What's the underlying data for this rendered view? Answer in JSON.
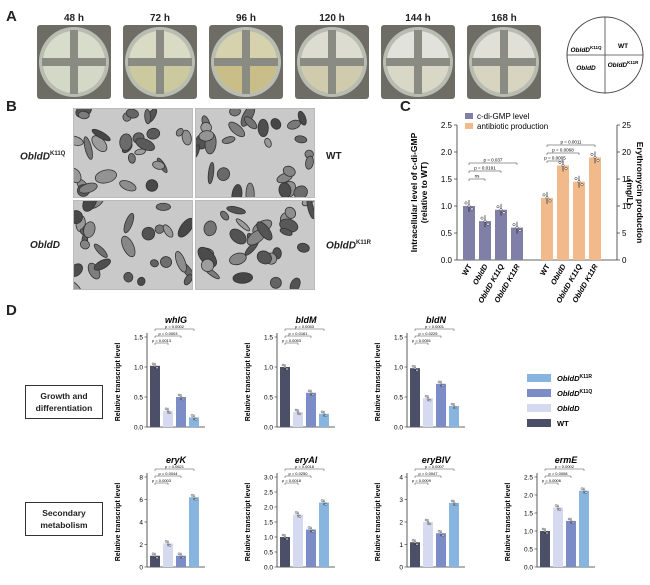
{
  "panels": {
    "A": "A",
    "B": "B",
    "C": "C",
    "D": "D"
  },
  "panelA": {
    "times": [
      "48 h",
      "72 h",
      "96 h",
      "120 h",
      "144 h",
      "168 h"
    ],
    "quadrant_labels": {
      "top_left": "ObldD",
      "top_left_sup": "K11Q",
      "top_right": "WT",
      "bottom_left": "ObldD",
      "bottom_right": "ObldD",
      "bottom_right_sup": "K11R"
    }
  },
  "panelB": {
    "labels": [
      {
        "base": "ObldD",
        "sup": "K11Q"
      },
      {
        "base": "WT",
        "sup": ""
      },
      {
        "base": "ObldD",
        "sup": ""
      },
      {
        "base": "ObldD",
        "sup": "K11R"
      }
    ]
  },
  "chart_data": [
    {
      "type": "bar",
      "panel": "C",
      "categories": [
        "WT",
        "ObldD",
        "ObldD K11Q",
        "ObldD K11R"
      ],
      "ylabel": "Intracellular level of c-di-GMP (relative to WT)",
      "y2label": "Erythromycin production (mg/L)",
      "ylim": [
        0,
        2.5
      ],
      "y2lim": [
        0,
        25
      ],
      "yticks": [
        "0.0",
        "0.5",
        "1.0",
        "1.5",
        "2.0",
        "2.5"
      ],
      "y2ticks": [
        "0",
        "5",
        "10",
        "15",
        "20",
        "25"
      ],
      "legend": [
        "c-di-GMP level",
        "antibiotic production"
      ],
      "series": [
        {
          "name": "c-di-GMP level",
          "values": [
            1.0,
            0.72,
            0.93,
            0.6
          ],
          "color": "#7f7fa8"
        },
        {
          "name": "antibiotic production",
          "values": [
            11.5,
            17.5,
            14.5,
            19.0
          ],
          "color": "#f2b98a"
        }
      ],
      "pvalues_left": [
        "p = 0.037",
        "p = 0.0191",
        "ns"
      ],
      "pvalues_right": [
        "p = 0.0011",
        "p = 0.0068",
        "p = 0.0005"
      ]
    },
    {
      "type": "bar",
      "panel": "D",
      "title": "whIG",
      "ylabel": "Relative transcript level",
      "ylim": [
        0,
        1.5
      ],
      "yticks": [
        "0.0",
        "0.5",
        "1.0",
        "1.5"
      ],
      "values": [
        1.02,
        0.27,
        0.5,
        0.16
      ],
      "pvalues": [
        "p = 0.0002",
        "p = 0.0003",
        "p = 0.0013"
      ]
    },
    {
      "type": "bar",
      "panel": "D",
      "title": "bldM",
      "ylabel": "Relative transcript level",
      "ylim": [
        0,
        1.5
      ],
      "yticks": [
        "0.0",
        "0.5",
        "1.0",
        "1.5"
      ],
      "values": [
        1.0,
        0.25,
        0.57,
        0.22
      ],
      "pvalues": [
        "p = 0.0053",
        "p = 0.0161",
        "p = 0.0053"
      ]
    },
    {
      "type": "bar",
      "panel": "D",
      "title": "bldN",
      "ylabel": "Relative transcript level",
      "ylim": [
        0,
        1.5
      ],
      "yticks": [
        "0.0",
        "0.5",
        "1.0",
        "1.5"
      ],
      "values": [
        0.98,
        0.48,
        0.72,
        0.35
      ],
      "pvalues": [
        "p < 0.0001",
        "p = 0.0225",
        "p = 0.0051"
      ]
    },
    {
      "type": "bar",
      "panel": "D",
      "title": "eryK",
      "ylabel": "Relative transcript level",
      "ylim": [
        0,
        8
      ],
      "yticks": [
        "0",
        "2",
        "4",
        "6",
        "8"
      ],
      "values": [
        1.0,
        2.1,
        1.0,
        6.2
      ],
      "pvalues": [
        "p = 0.0621",
        "p = 0.0044",
        "p = 0.0003"
      ]
    },
    {
      "type": "bar",
      "panel": "D",
      "title": "eryAI",
      "ylabel": "Relative transcript level",
      "ylim": [
        0,
        3.0
      ],
      "yticks": [
        "0.0",
        "0.5",
        "1.0",
        "1.5",
        "2.0",
        "2.5",
        "3.0"
      ],
      "values": [
        1.0,
        1.75,
        1.25,
        2.15
      ],
      "pvalues": [
        "p = 0.0018",
        "p = 0.0250",
        "p = 0.0018"
      ]
    },
    {
      "type": "bar",
      "panel": "D",
      "title": "eryBIV",
      "ylabel": "Relative transcript level",
      "ylim": [
        0,
        4
      ],
      "yticks": [
        "0",
        "1",
        "2",
        "3",
        "4"
      ],
      "values": [
        1.1,
        2.0,
        1.5,
        2.85
      ],
      "pvalues": [
        "p = 0.0007",
        "p = 0.0047",
        "p = 0.0009"
      ]
    },
    {
      "type": "bar",
      "panel": "D",
      "title": "ermE",
      "ylabel": "Relative transcript level",
      "ylim": [
        0,
        2.5
      ],
      "yticks": [
        "0.0",
        "0.5",
        "1.0",
        "1.5",
        "2.0",
        "2.5"
      ],
      "values": [
        1.0,
        1.65,
        1.28,
        2.12
      ],
      "pvalues": [
        "p = 0.0002",
        "p = 0.0008",
        "p = 0.0006"
      ]
    }
  ],
  "panelD": {
    "row_labels": [
      [
        "Growth and",
        "differentiation"
      ],
      [
        "Secondary",
        "metabolism"
      ]
    ],
    "legend": [
      {
        "base": "ObldD",
        "sup": "K11R",
        "color": "#87b5e0"
      },
      {
        "base": "ObldD",
        "sup": "K11Q",
        "color": "#7b8cc6"
      },
      {
        "base": "ObldD",
        "sup": "",
        "color": "#d6daf0"
      },
      {
        "base": "WT",
        "sup": "",
        "color": "#4b5068"
      }
    ],
    "colors": [
      "#4b5068",
      "#d6daf0",
      "#7b8cc6",
      "#87b5e0"
    ]
  }
}
